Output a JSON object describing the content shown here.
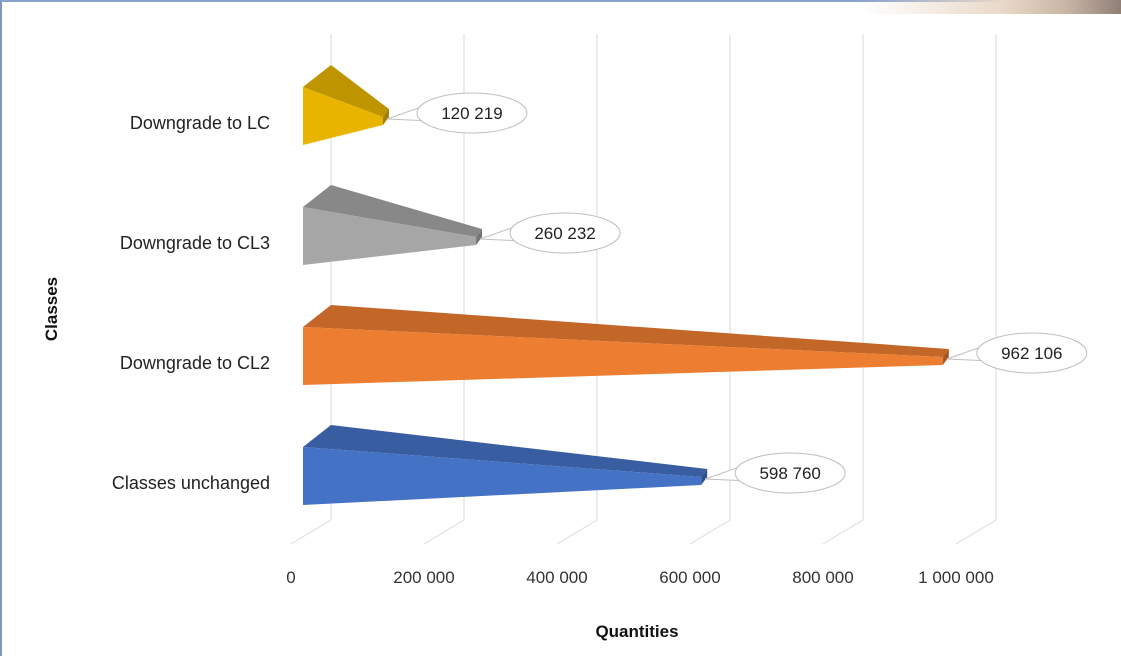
{
  "chart_data": {
    "type": "bar",
    "orientation": "horizontal",
    "xlabel": "Quantities",
    "ylabel": "Classes",
    "xlim": [
      0,
      1000000
    ],
    "x_ticks": [
      0,
      200000,
      400000,
      600000,
      800000,
      1000000
    ],
    "x_tick_labels": [
      "0",
      "200 000",
      "400 000",
      "600 000",
      "800 000",
      "1 000 000"
    ],
    "categories": [
      "Downgrade to LC",
      "Downgrade to CL3",
      "Downgrade to CL2",
      "Classes unchanged"
    ],
    "values": [
      120219,
      260232,
      962106,
      598760
    ],
    "data_labels": [
      "120 219",
      "260 232",
      "962 106",
      "598 760"
    ],
    "colors": [
      "#e8b400",
      "#a6a6a6",
      "#ed7d31",
      "#4472c4"
    ],
    "grid": true
  }
}
